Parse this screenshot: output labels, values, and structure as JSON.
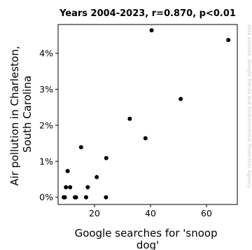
{
  "chart_data": {
    "type": "scatter",
    "title": "Years 2004-2023, r=0.870, p<0.01",
    "xlabel_lines": [
      "Google searches for 'snoop",
      "dog'"
    ],
    "ylabel_lines": [
      "Air pollution in Charleston,",
      "South Carolina"
    ],
    "xlim": [
      7,
      71
    ],
    "ylim": [
      -0.2,
      4.8
    ],
    "x_ticks": [
      20,
      40,
      60
    ],
    "x_tick_labels": [
      "20",
      "40",
      "60"
    ],
    "y_ticks": [
      0,
      1,
      2,
      3,
      4
    ],
    "y_tick_labels": [
      "0%",
      "1%",
      "2%",
      "3%",
      "4%"
    ],
    "marker_color": "#000000",
    "grid": false,
    "points": [
      {
        "x": 9.0,
        "y": 0.0
      },
      {
        "x": 9.4,
        "y": 0.0
      },
      {
        "x": 9.8,
        "y": 0.28
      },
      {
        "x": 10.4,
        "y": 0.73
      },
      {
        "x": 11.3,
        "y": 0.28
      },
      {
        "x": 13.0,
        "y": 0.0
      },
      {
        "x": 13.4,
        "y": 0.0
      },
      {
        "x": 15.2,
        "y": 1.39
      },
      {
        "x": 17.0,
        "y": 0.0
      },
      {
        "x": 17.6,
        "y": 0.28
      },
      {
        "x": 20.8,
        "y": 0.56
      },
      {
        "x": 24.2,
        "y": 1.09
      },
      {
        "x": 24.1,
        "y": 0.0
      },
      {
        "x": 32.6,
        "y": 2.18
      },
      {
        "x": 38.2,
        "y": 1.64
      },
      {
        "x": 40.4,
        "y": 4.64
      },
      {
        "x": 50.8,
        "y": 2.73
      },
      {
        "x": 67.8,
        "y": 4.37
      }
    ]
  },
  "side_note": "data sources: Google Trends and Environmental Protection Agency"
}
